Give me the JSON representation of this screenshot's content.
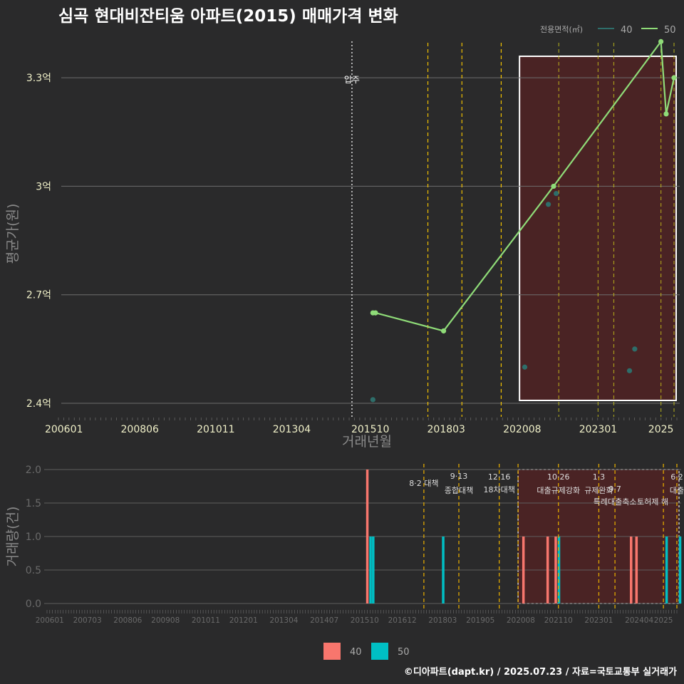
{
  "title": "심곡 현대비잔티움 아파트(2015) 매매가격 변화",
  "caption": "©디아파트(dapt.kr) / 2025.07.23 / 자료=국토교통부 실거래가",
  "colors": {
    "background": "#2a2a2b",
    "s40_price": "#2e6e6a",
    "s50_price": "#8fdc78",
    "vol40": "#f8766d",
    "vol50": "#00bfc4",
    "policy_line": "#f2c100",
    "highlight_fill": "#4a2324"
  },
  "chart_data": [
    {
      "type": "line",
      "xlabel": "거래년월",
      "ylabel": "평균가(원)",
      "x_ticks": [
        "200601",
        "200806",
        "201011",
        "201304",
        "201510",
        "201803",
        "202008",
        "202301",
        "2025"
      ],
      "y_ticks": [
        "2.4억",
        "2.7억",
        "3억",
        "3.3억"
      ],
      "ylim": [
        2.4,
        3.45
      ],
      "xlim": [
        "2005-12",
        "2025-06"
      ],
      "legend_title": "전용면적(㎡)",
      "legend_position": "top-right",
      "series": [
        {
          "name": "40",
          "style": "points",
          "points": [
            {
              "x": "2015-11",
              "y": 2.41
            },
            {
              "x": "2020-09",
              "y": 2.5
            },
            {
              "x": "2021-06",
              "y": 2.95
            },
            {
              "x": "2021-09",
              "y": 2.98
            },
            {
              "x": "2024-01",
              "y": 2.49
            },
            {
              "x": "2024-03",
              "y": 2.55
            }
          ]
        },
        {
          "name": "50",
          "style": "line",
          "points": [
            {
              "x": "2015-11",
              "y": 2.65
            },
            {
              "x": "2015-12",
              "y": 2.65
            },
            {
              "x": "2018-02",
              "y": 2.6
            },
            {
              "x": "2021-08",
              "y": 3.0
            },
            {
              "x": "2025-01",
              "y": 3.4
            },
            {
              "x": "2025-03",
              "y": 3.2
            },
            {
              "x": "2025-06",
              "y": 3.3
            }
          ]
        }
      ],
      "move_in": {
        "x": "2015-03",
        "label": "입주"
      },
      "policy_lines": [
        "2017-08",
        "2018-09",
        "2019-12",
        "2021-10",
        "2023-01",
        "2023-07",
        "2025-01",
        "2025-06"
      ],
      "highlight": {
        "from": "2020-07",
        "to": "2025-06"
      }
    },
    {
      "type": "bar",
      "ylabel": "거래량(건)",
      "y_ticks": [
        "0.0",
        "0.5",
        "1.0",
        "1.5",
        "2.0"
      ],
      "ylim": [
        0,
        2
      ],
      "x_ticks": [
        "200601",
        "200703",
        "200806",
        "200908",
        "201011",
        "201201",
        "201304",
        "201407",
        "201510",
        "201612",
        "201803",
        "201905",
        "202008",
        "202110",
        "202301",
        "202404",
        "2025"
      ],
      "legend": [
        "40",
        "50"
      ],
      "legend_position": "bottom",
      "bars": [
        {
          "x": "2015-11",
          "series": "40",
          "value": 2
        },
        {
          "x": "2015-11",
          "series": "50",
          "value": 1
        },
        {
          "x": "2015-12",
          "series": "50",
          "value": 1
        },
        {
          "x": "2018-02",
          "series": "50",
          "value": 1
        },
        {
          "x": "2020-09",
          "series": "40",
          "value": 1
        },
        {
          "x": "2021-06",
          "series": "40",
          "value": 1
        },
        {
          "x": "2021-09",
          "series": "40",
          "value": 1
        },
        {
          "x": "2021-09",
          "series": "50",
          "value": 1
        },
        {
          "x": "2024-01",
          "series": "40",
          "value": 1
        },
        {
          "x": "2024-03",
          "series": "40",
          "value": 1
        },
        {
          "x": "2025-01",
          "series": "50",
          "value": 1
        },
        {
          "x": "2025-06",
          "series": "50",
          "value": 1
        }
      ],
      "policy_lines": [
        "2017-08",
        "2018-09",
        "2019-12",
        "2020-07",
        "2021-10",
        "2023-01",
        "2023-07",
        "2025-01",
        "2025-06"
      ],
      "highlight": {
        "from": "2020-07",
        "to": "2025-06"
      },
      "annotations": [
        {
          "x": "2017-08",
          "lines": [
            "8·2 대책"
          ]
        },
        {
          "x": "2018-09",
          "lines": [
            "9·13",
            "종합대책"
          ]
        },
        {
          "x": "2019-12",
          "lines": [
            "12·16",
            "18차대책"
          ]
        },
        {
          "x": "2021-10",
          "lines": [
            "10·26",
            "대출규제강화"
          ]
        },
        {
          "x": "2023-01",
          "lines": [
            "1·3",
            "규제완화"
          ]
        },
        {
          "x": "2023-07",
          "lines": [
            "9·7",
            "특례대출축소"
          ]
        },
        {
          "x": "2024-09",
          "lines": [
            "토허제 해"
          ]
        },
        {
          "x": "2025-06",
          "lines": [
            "6·2",
            "대출"
          ]
        }
      ]
    }
  ]
}
